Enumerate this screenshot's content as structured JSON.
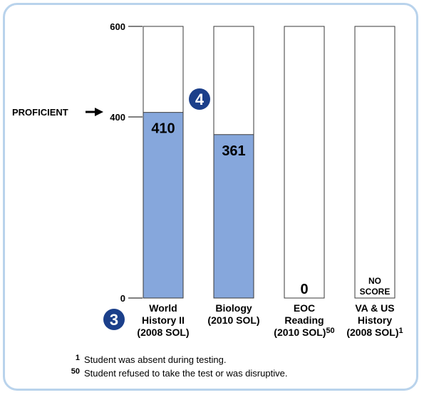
{
  "chart_data": {
    "type": "bar",
    "ylim": [
      0,
      600
    ],
    "yticks": [
      0,
      400,
      600
    ],
    "proficient_line": {
      "label": "PROFICIENT",
      "value": 400
    },
    "categories": [
      {
        "lines": [
          "World",
          "History II",
          "(2008 SOL)"
        ],
        "footnote": "",
        "value": 410,
        "label": "410"
      },
      {
        "lines": [
          "Biology",
          "(2010 SOL)"
        ],
        "footnote": "",
        "value": 361,
        "label": "361"
      },
      {
        "lines": [
          "EOC",
          "Reading",
          "(2010 SOL)"
        ],
        "footnote": "50",
        "value": 0,
        "label": "0"
      },
      {
        "lines": [
          "VA & US",
          "History",
          "(2008 SOL)"
        ],
        "footnote": "1",
        "value": null,
        "label_lines": [
          "NO",
          "SCORE"
        ]
      }
    ],
    "badges": [
      {
        "text": "4",
        "near": "bar-1-top"
      },
      {
        "text": "3",
        "near": "x-axis-labels"
      }
    ],
    "footnotes": [
      {
        "mark": "1",
        "text": "Student was absent during testing."
      },
      {
        "mark": "50",
        "text": "Student refused to take the test or was disruptive."
      }
    ],
    "colors": {
      "bar": "#86a7dc",
      "bar_border": "#3a3a3a",
      "badge": "#1b3f8a",
      "frame": "#b9d3ec"
    }
  }
}
